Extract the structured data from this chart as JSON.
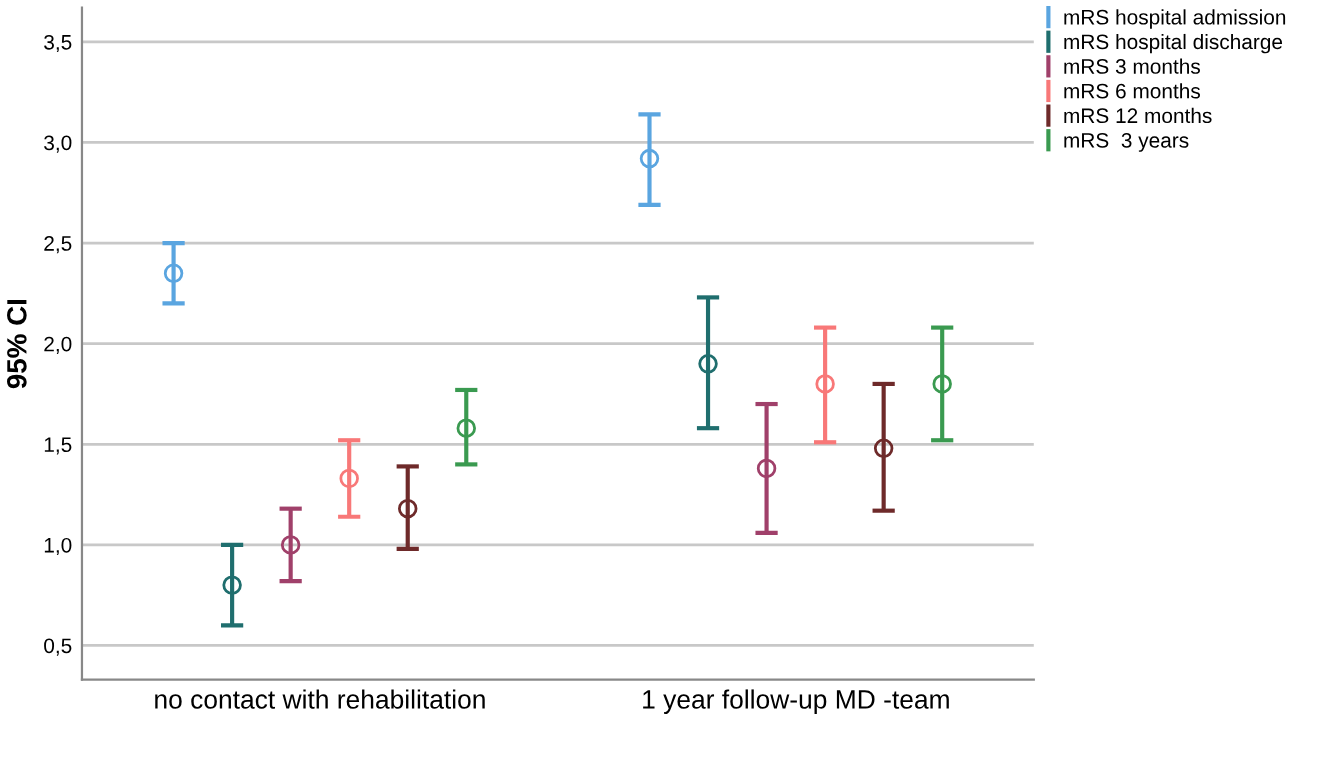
{
  "chart_data": {
    "type": "scatter",
    "ylabel": "95% CI",
    "categories": [
      "no contact with rehabilitation",
      "1 year follow-up MD -team"
    ],
    "series": [
      {
        "name": "mRS hospital admission",
        "color": "#5aa5e0",
        "values": [
          2.35,
          2.92
        ],
        "errors": [
          [
            2.2,
            2.5
          ],
          [
            2.69,
            3.14
          ]
        ]
      },
      {
        "name": "mRS hospital discharge",
        "color": "#1f6e6e",
        "values": [
          0.8,
          1.9
        ],
        "errors": [
          [
            0.6,
            1.0
          ],
          [
            1.58,
            2.23
          ]
        ]
      },
      {
        "name": "mRS 3 months",
        "color": "#a0406a",
        "values": [
          1.0,
          1.38
        ],
        "errors": [
          [
            0.82,
            1.18
          ],
          [
            1.06,
            1.7
          ]
        ]
      },
      {
        "name": "mRS 6 months",
        "color": "#f87878",
        "values": [
          1.33,
          1.8
        ],
        "errors": [
          [
            1.14,
            1.52
          ],
          [
            1.51,
            2.08
          ]
        ]
      },
      {
        "name": "mRS 12 months",
        "color": "#6e2a2a",
        "values": [
          1.18,
          1.48
        ],
        "errors": [
          [
            0.98,
            1.39
          ],
          [
            1.17,
            1.8
          ]
        ]
      },
      {
        "name": "mRS  3 years",
        "color": "#3a9a50",
        "values": [
          1.58,
          1.8
        ],
        "errors": [
          [
            1.4,
            1.77
          ],
          [
            1.52,
            2.08
          ]
        ]
      }
    ],
    "ylim": [
      0.33,
      3.67
    ],
    "yticks": [
      {
        "value": 0.5,
        "label": "0,5"
      },
      {
        "value": 1.0,
        "label": "1,0"
      },
      {
        "value": 1.5,
        "label": "1,5"
      },
      {
        "value": 2.0,
        "label": "2,0"
      },
      {
        "value": 2.5,
        "label": "2,5"
      },
      {
        "value": 3.0,
        "label": "3,0"
      },
      {
        "value": 3.5,
        "label": "3,5"
      }
    ],
    "grid": "y",
    "marker": "circle",
    "legend": "top right"
  }
}
